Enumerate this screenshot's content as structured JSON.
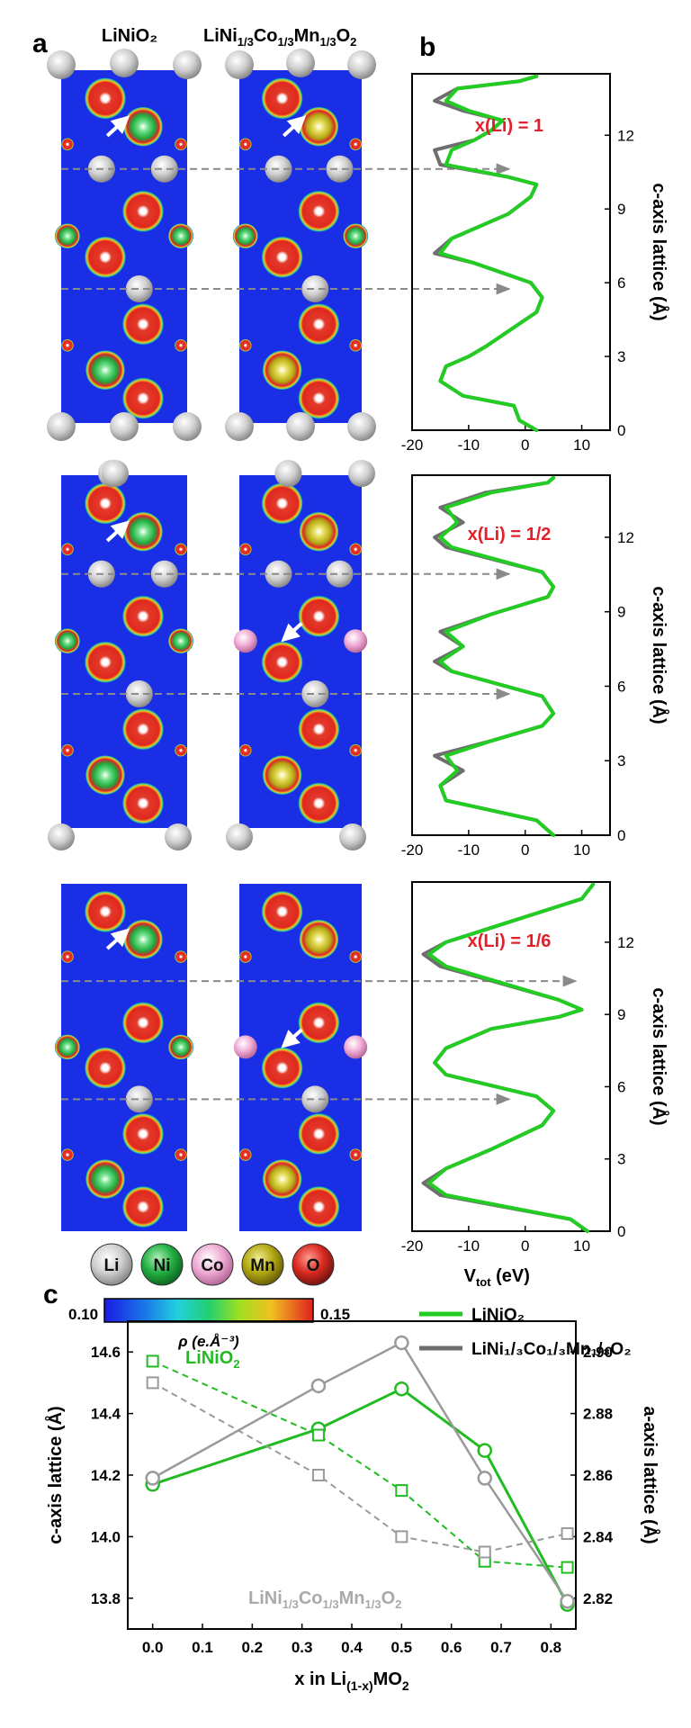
{
  "panel_labels": {
    "a": "a",
    "b": "b",
    "c": "c"
  },
  "structure_titles": {
    "left": "LiNiO₂",
    "right": "LiNi₁/₃Co₁/₃Mn₁/₃O₂",
    "right_base": "LiNi",
    "right_sub1": "1/3",
    "right_co": "Co",
    "right_sub2": "1/3",
    "right_mn": "Mn",
    "right_sub3": "1/3",
    "right_o": "O",
    "right_sub4": "2"
  },
  "element_legend": [
    "Li",
    "Ni",
    "Co",
    "Mn",
    "O"
  ],
  "element_colors": {
    "Li": "#c9c9c9",
    "Ni": "#23b043",
    "Co": "#e79ac8",
    "Mn": "#b3a812",
    "O": "#d92a20",
    "background": "#1a2ee6"
  },
  "colorbar": {
    "min": "0.10",
    "max": "0.15",
    "label": "ρ (e.Å⁻³)"
  },
  "chart_data": [
    {
      "type": "line",
      "panel": "b",
      "concentration_label": "x(Li) = 1",
      "xlabel": "",
      "ylabel": "c-axis lattice (Å)",
      "xlim": [
        -20,
        15
      ],
      "ylim": [
        0,
        14.5
      ],
      "xticks": [
        "-20",
        "-10",
        "0",
        "10"
      ],
      "yticks": [
        "0",
        "3",
        "6",
        "9",
        "12"
      ],
      "series": [
        {
          "name": "LiNiO₂",
          "color": "#22cc22",
          "x": [
            2,
            -1,
            -2,
            -11,
            -15,
            -14,
            -10,
            -7,
            2,
            3,
            1,
            -9,
            -15,
            -13,
            -3,
            1,
            2,
            -3,
            -14,
            -13,
            -9,
            -6,
            -4,
            -10,
            -14,
            -12,
            -1,
            2
          ],
          "y": [
            0.0,
            0.4,
            1.0,
            1.4,
            2.0,
            2.6,
            3.0,
            3.4,
            4.8,
            5.4,
            6.0,
            6.8,
            7.2,
            7.8,
            8.8,
            9.5,
            10.0,
            10.3,
            10.8,
            11.4,
            11.8,
            12.2,
            12.6,
            13.0,
            13.4,
            13.9,
            14.2,
            14.4
          ]
        },
        {
          "name": "LiNi₁/₃Co₁/₃Mn₁/₃O₂",
          "color": "#6e6e6e",
          "x": [
            2,
            -1,
            -2,
            -11,
            -15,
            -14,
            -10,
            -7,
            2,
            3,
            1,
            -9,
            -16,
            -13,
            -3,
            1,
            2,
            -3,
            -15,
            -16,
            -9,
            -6,
            -4,
            -11,
            -16,
            -12,
            -1,
            2
          ],
          "y": [
            0.0,
            0.4,
            1.0,
            1.4,
            2.0,
            2.6,
            3.0,
            3.4,
            4.8,
            5.4,
            6.0,
            6.8,
            7.2,
            7.8,
            8.8,
            9.5,
            10.0,
            10.3,
            10.8,
            11.4,
            11.8,
            12.2,
            12.6,
            13.0,
            13.4,
            13.9,
            14.2,
            14.4
          ]
        }
      ]
    },
    {
      "type": "line",
      "panel": "b",
      "concentration_label": "x(Li) = 1/2",
      "xlabel": "",
      "ylabel": "c-axis lattice (Å)",
      "xlim": [
        -20,
        15
      ],
      "ylim": [
        0,
        14.5
      ],
      "xticks": [
        "-20",
        "-10",
        "0",
        "10"
      ],
      "yticks": [
        "0",
        "3",
        "6",
        "9",
        "12"
      ],
      "series": [
        {
          "name": "LiNiO₂",
          "color": "#22cc22",
          "x": [
            5,
            2,
            -14,
            -15,
            -12,
            -14,
            -6,
            3,
            5,
            3,
            -13,
            -15,
            -11,
            -14,
            -6,
            4,
            5,
            3,
            -13,
            -15,
            -12,
            -14,
            -6,
            4,
            5
          ],
          "y": [
            0.0,
            0.6,
            1.4,
            2.0,
            2.6,
            3.2,
            3.8,
            4.4,
            4.9,
            5.6,
            6.6,
            7.0,
            7.6,
            8.2,
            8.9,
            9.6,
            10.0,
            10.6,
            11.6,
            12.0,
            12.6,
            13.2,
            13.8,
            14.2,
            14.4
          ]
        },
        {
          "name": "LiNi₁/₃Co₁/₃Mn₁/₃O₂",
          "color": "#6e6e6e",
          "x": [
            5,
            2,
            -14,
            -15,
            -11,
            -16,
            -6,
            3,
            5,
            3,
            -13,
            -16,
            -11,
            -15,
            -6,
            4,
            5,
            3,
            -14,
            -16,
            -11,
            -15,
            -7,
            4,
            5
          ],
          "y": [
            0.0,
            0.6,
            1.4,
            2.0,
            2.6,
            3.2,
            3.8,
            4.4,
            4.9,
            5.6,
            6.6,
            7.0,
            7.6,
            8.2,
            8.9,
            9.6,
            10.0,
            10.6,
            11.6,
            12.0,
            12.6,
            13.2,
            13.8,
            14.2,
            14.4
          ]
        }
      ]
    },
    {
      "type": "line",
      "panel": "b",
      "concentration_label": "x(Li) = 1/6",
      "xlabel": "V_tot (eV)",
      "ylabel": "c-axis lattice (Å)",
      "xlim": [
        -20,
        15
      ],
      "ylim": [
        0,
        14.5
      ],
      "xticks": [
        "-20",
        "-10",
        "0",
        "10"
      ],
      "yticks": [
        "0",
        "3",
        "6",
        "9",
        "12"
      ],
      "series": [
        {
          "name": "LiNiO₂",
          "color": "#22cc22",
          "x": [
            11,
            8,
            -14,
            -17,
            -14,
            -6,
            3,
            5,
            2,
            -14,
            -16,
            -14,
            -6,
            6,
            10,
            6,
            -14,
            -17,
            -14,
            -6,
            10,
            12
          ],
          "y": [
            0.0,
            0.5,
            1.5,
            2.0,
            2.6,
            3.4,
            4.4,
            5.0,
            5.6,
            6.5,
            7.0,
            7.6,
            8.4,
            8.9,
            9.2,
            9.6,
            11.0,
            11.5,
            12.0,
            12.6,
            13.8,
            14.4
          ]
        },
        {
          "name": "LiNi₁/₃Co₁/₃Mn₁/₃O₂",
          "color": "#6e6e6e",
          "x": [
            11,
            8,
            -15,
            -18,
            -14,
            -6,
            3,
            5,
            2,
            -14,
            -16,
            -14,
            -6,
            6,
            10,
            6,
            -15,
            -18,
            -14,
            -6,
            10,
            12
          ],
          "y": [
            0.0,
            0.5,
            1.5,
            2.0,
            2.6,
            3.4,
            4.4,
            5.0,
            5.6,
            6.5,
            7.0,
            7.6,
            8.4,
            8.9,
            9.2,
            9.6,
            11.0,
            11.5,
            12.0,
            12.6,
            13.8,
            14.4
          ]
        }
      ]
    },
    {
      "type": "line",
      "panel": "c",
      "xlabel": "x in Li(1-x)MO2",
      "xlabel_main": "x in Li",
      "xlabel_sub": "(1-x)",
      "xlabel_end": "MO",
      "xlabel_sub2": "2",
      "ylabel_left": "c-axis lattice (Å)",
      "ylabel_right": "a-axis lattice (Å)",
      "xlim": [
        -0.05,
        0.85
      ],
      "ylim_left": [
        13.7,
        14.7
      ],
      "ylim_right": [
        2.81,
        2.91
      ],
      "xticks": [
        "0.0",
        "0.1",
        "0.2",
        "0.3",
        "0.4",
        "0.5",
        "0.6",
        "0.7",
        "0.8"
      ],
      "yticks_left": [
        "13.8",
        "14.0",
        "14.2",
        "14.4",
        "14.6"
      ],
      "yticks_right": [
        "2.82",
        "2.84",
        "2.86",
        "2.88",
        "2.90"
      ],
      "label_green": "LiNiO",
      "label_green_sub": "2",
      "label_gray": "LiNi",
      "label_gray_parts": [
        "1/3",
        "Co",
        "1/3",
        "Mn",
        "1/3",
        "O",
        "2"
      ],
      "series": [
        {
          "name": "LiNiO₂",
          "axis": "left",
          "marker": "circle",
          "style": "solid",
          "color": "#22bb22",
          "x": [
            0.0,
            0.333,
            0.5,
            0.667,
            0.833
          ],
          "y": [
            14.17,
            14.35,
            14.48,
            14.28,
            13.78
          ]
        },
        {
          "name": "LiNi₁/₃Co₁/₃Mn₁/₃O₂",
          "axis": "left",
          "marker": "circle",
          "style": "solid",
          "color": "#9a9a9a",
          "x": [
            0.0,
            0.333,
            0.5,
            0.667,
            0.833
          ],
          "y": [
            14.19,
            14.49,
            14.63,
            14.19,
            13.79
          ]
        },
        {
          "name": "LiNiO₂",
          "axis": "right",
          "marker": "square",
          "style": "dashed",
          "color": "#22bb22",
          "x": [
            0.0,
            0.333,
            0.5,
            0.667,
            0.833
          ],
          "y": [
            2.897,
            2.873,
            2.855,
            2.832,
            2.83
          ]
        },
        {
          "name": "LiNi₁/₃Co₁/₃Mn₁/₃O₂",
          "axis": "right",
          "marker": "square",
          "style": "dashed",
          "color": "#9a9a9a",
          "x": [
            0.0,
            0.333,
            0.5,
            0.667,
            0.833
          ],
          "y": [
            2.89,
            2.86,
            2.84,
            2.835,
            2.841
          ]
        }
      ]
    }
  ]
}
